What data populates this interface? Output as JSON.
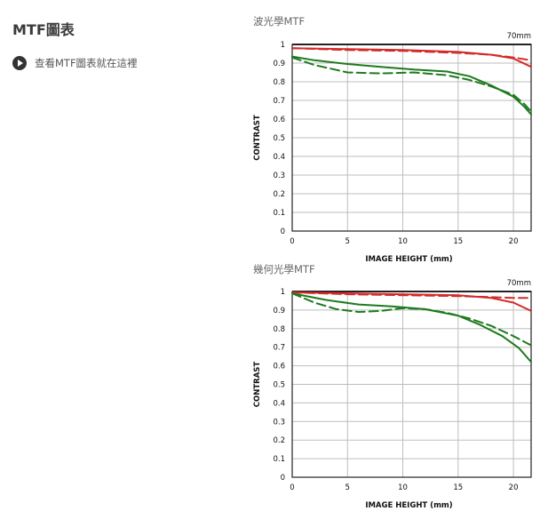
{
  "sidebar": {
    "title": "MTF圖表",
    "link_label": "查看MTF圖表就在這裡",
    "link_icon": "play-circle-icon"
  },
  "charts_meta": {
    "colors": {
      "sagittal": "#d42a2a",
      "meridional": "#1e7a1e",
      "grid": "#bdbdbd",
      "frame": "#222222"
    }
  },
  "chart_data": [
    {
      "type": "line",
      "title": "波光學MTF",
      "annotation": "70mm",
      "xlabel": "IMAGE HEIGHT (mm)",
      "ylabel": "CONTRAST",
      "xlim": [
        0,
        21.6
      ],
      "ylim": [
        0,
        1
      ],
      "xticks": [
        0,
        5,
        10,
        15,
        20
      ],
      "yticks": [
        0,
        0.1,
        0.2,
        0.3,
        0.4,
        0.5,
        0.6,
        0.7,
        0.8,
        0.9,
        1
      ],
      "ytick_labels": [
        "0",
        "0.1",
        "0.2",
        "0.3",
        "0.4",
        "0.5",
        "0.6",
        "0.7",
        "0.8",
        "0.9",
        "1"
      ],
      "grid": true,
      "series": [
        {
          "color": "#d42a2a",
          "dash": false,
          "x": [
            0,
            5,
            10,
            15,
            18,
            20,
            21.6
          ],
          "y": [
            0.98,
            0.975,
            0.97,
            0.96,
            0.945,
            0.925,
            0.88
          ]
        },
        {
          "color": "#d42a2a",
          "dash": true,
          "x": [
            0,
            5,
            10,
            15,
            18,
            20,
            21.6
          ],
          "y": [
            0.98,
            0.97,
            0.965,
            0.955,
            0.945,
            0.93,
            0.915
          ]
        },
        {
          "color": "#1e7a1e",
          "dash": false,
          "x": [
            0,
            2,
            5,
            8,
            11,
            14,
            16,
            18,
            20,
            21,
            21.6
          ],
          "y": [
            0.935,
            0.915,
            0.895,
            0.88,
            0.865,
            0.855,
            0.83,
            0.78,
            0.72,
            0.665,
            0.625
          ]
        },
        {
          "color": "#1e7a1e",
          "dash": true,
          "x": [
            0,
            2,
            5,
            8,
            11,
            14,
            16,
            18,
            20,
            21,
            21.6
          ],
          "y": [
            0.93,
            0.89,
            0.85,
            0.845,
            0.85,
            0.835,
            0.81,
            0.775,
            0.73,
            0.68,
            0.64
          ]
        }
      ]
    },
    {
      "type": "line",
      "title": "幾何光學MTF",
      "annotation": "70mm",
      "xlabel": "IMAGE HEIGHT (mm)",
      "ylabel": "CONTRAST",
      "xlim": [
        0,
        21.6
      ],
      "ylim": [
        0,
        1
      ],
      "xticks": [
        0,
        5,
        10,
        15,
        20
      ],
      "yticks": [
        0,
        0.1,
        0.2,
        0.3,
        0.4,
        0.5,
        0.6,
        0.7,
        0.8,
        0.9,
        1
      ],
      "ytick_labels": [
        "0",
        "0.1",
        "0.2",
        "0.3",
        "0.4",
        "0.5",
        "0.6",
        "0.7",
        "0.8",
        "0.9",
        "1"
      ],
      "grid": true,
      "series": [
        {
          "color": "#d42a2a",
          "dash": false,
          "x": [
            0,
            5,
            10,
            15,
            18,
            20,
            21.6
          ],
          "y": [
            0.995,
            0.99,
            0.985,
            0.98,
            0.965,
            0.94,
            0.895
          ]
        },
        {
          "color": "#d42a2a",
          "dash": true,
          "x": [
            0,
            5,
            10,
            15,
            18,
            20,
            21.6
          ],
          "y": [
            0.995,
            0.985,
            0.98,
            0.975,
            0.97,
            0.965,
            0.965
          ]
        },
        {
          "color": "#1e7a1e",
          "dash": false,
          "x": [
            0,
            3,
            6,
            9,
            12,
            15,
            17,
            19,
            20.5,
            21.6
          ],
          "y": [
            0.99,
            0.955,
            0.93,
            0.92,
            0.905,
            0.87,
            0.82,
            0.76,
            0.695,
            0.62
          ]
        },
        {
          "color": "#1e7a1e",
          "dash": true,
          "x": [
            0,
            2,
            4,
            6,
            8,
            10,
            12,
            14,
            16,
            18,
            20,
            21.6
          ],
          "y": [
            0.99,
            0.94,
            0.905,
            0.89,
            0.895,
            0.91,
            0.905,
            0.885,
            0.855,
            0.815,
            0.76,
            0.71
          ]
        }
      ]
    }
  ]
}
